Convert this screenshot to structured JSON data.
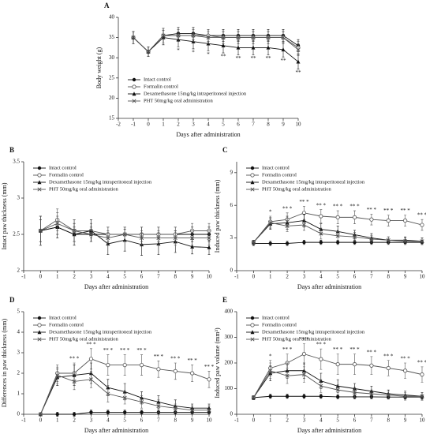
{
  "chart_data": [
    {
      "type": "line",
      "panel": "A",
      "ylabel": "Body weight (g)",
      "xlabel": "Days after administration",
      "x": [
        -1,
        0,
        1,
        2,
        3,
        4,
        5,
        6,
        7,
        8,
        9,
        10
      ],
      "xlim": [
        -2,
        10
      ],
      "xticks": [
        -2,
        -1,
        0,
        1,
        2,
        3,
        4,
        5,
        6,
        7,
        8,
        9,
        10
      ],
      "ylim": [
        15,
        40
      ],
      "yticks": [
        15,
        20,
        25,
        30,
        35,
        40
      ],
      "legend": "lower left",
      "annotation_position": "below",
      "series": [
        {
          "name": "Intact control",
          "color": "#111",
          "marker": "circle",
          "values": [
            35,
            31.5,
            35.5,
            36,
            36,
            35.5,
            35.5,
            35.5,
            35.5,
            35.5,
            35.5,
            33
          ],
          "errors": [
            1.5,
            1.2,
            1.8,
            1.5,
            1.5,
            1.5,
            1.5,
            1.5,
            1.5,
            1.5,
            1.5,
            1.5
          ]
        },
        {
          "name": "Formalin control",
          "color": "#555",
          "marker": "open-circle",
          "values": [
            35,
            31.5,
            35.5,
            35.5,
            35.5,
            35.5,
            35,
            35,
            35,
            35,
            35,
            32.5
          ],
          "errors": [
            1.5,
            1.2,
            1.8,
            1.5,
            1.5,
            1.5,
            1.5,
            1.5,
            1.5,
            1.5,
            1.5,
            1.5
          ]
        },
        {
          "name": "Dexamethasone 15mg/kg intraperitoneal injection",
          "color": "#111",
          "marker": "triangle",
          "values": [
            35,
            31.5,
            35,
            34.5,
            34,
            33.5,
            33,
            32.5,
            32.5,
            32.5,
            32,
            29
          ],
          "errors": [
            1.5,
            1.2,
            1.8,
            1.8,
            1.8,
            1.8,
            1.8,
            1.8,
            1.8,
            1.8,
            1.8,
            1.8
          ]
        },
        {
          "name": "PHT 50mg/kg oral administration",
          "color": "#555",
          "marker": "x",
          "values": [
            35,
            31.5,
            35.5,
            35.5,
            35.5,
            35,
            35,
            35,
            35,
            35,
            35,
            32
          ],
          "errors": [
            1.5,
            1.2,
            1.8,
            1.5,
            1.5,
            1.5,
            1.5,
            1.5,
            1.5,
            1.5,
            1.5,
            1.5
          ]
        }
      ],
      "annotations": [
        {
          "x": 2,
          "text": "*"
        },
        {
          "x": 3,
          "text": "*"
        },
        {
          "x": 4,
          "text": "*"
        },
        {
          "x": 5,
          "text": "**"
        },
        {
          "x": 6,
          "text": "**"
        },
        {
          "x": 7,
          "text": "**"
        },
        {
          "x": 8,
          "text": "**"
        },
        {
          "x": 9,
          "text": "**"
        },
        {
          "x": 10,
          "text": "**"
        }
      ]
    },
    {
      "type": "line",
      "panel": "B",
      "ylabel": "Intact paw thickness (mm)",
      "xlabel": "Days after administration",
      "x": [
        0,
        1,
        2,
        3,
        4,
        5,
        6,
        7,
        8,
        9,
        10
      ],
      "xlim": [
        -1,
        10
      ],
      "xticks": [
        -1,
        0,
        1,
        2,
        3,
        4,
        5,
        6,
        7,
        8,
        9,
        10
      ],
      "ylim": [
        2,
        3.5
      ],
      "yticks": [
        2,
        2.5,
        3,
        3.5
      ],
      "legend": "upper left",
      "series": [
        {
          "name": "Intact control",
          "color": "#111",
          "marker": "circle",
          "values": [
            2.55,
            2.6,
            2.5,
            2.5,
            2.5,
            2.5,
            2.5,
            2.5,
            2.5,
            2.5,
            2.5
          ],
          "errors": [
            0.15,
            0.1,
            0.1,
            0.1,
            0.1,
            0.1,
            0.1,
            0.1,
            0.1,
            0.1,
            0.1
          ]
        },
        {
          "name": "Formalin control",
          "color": "#555",
          "marker": "open-circle",
          "values": [
            2.55,
            2.7,
            2.55,
            2.55,
            2.5,
            2.5,
            2.5,
            2.5,
            2.5,
            2.55,
            2.55
          ],
          "errors": [
            0.2,
            0.15,
            0.15,
            0.1,
            0.1,
            0.1,
            0.1,
            0.1,
            0.1,
            0.1,
            0.1
          ]
        },
        {
          "name": "Dexamethasone 15mg/kg intraperitoneal injection",
          "color": "#111",
          "marker": "triangle",
          "values": [
            2.55,
            2.6,
            2.5,
            2.55,
            2.37,
            2.42,
            2.36,
            2.37,
            2.4,
            2.33,
            2.32
          ],
          "errors": [
            0.2,
            0.15,
            0.15,
            0.15,
            0.15,
            0.15,
            0.15,
            0.15,
            0.15,
            0.1,
            0.1
          ]
        },
        {
          "name": "PHT 50mg/kg oral administration",
          "color": "#555",
          "marker": "x",
          "values": [
            2.55,
            2.65,
            2.55,
            2.5,
            2.45,
            2.5,
            2.45,
            2.45,
            2.45,
            2.45,
            2.45
          ],
          "errors": [
            0.2,
            0.15,
            0.15,
            0.1,
            0.1,
            0.1,
            0.1,
            0.1,
            0.1,
            0.1,
            0.1
          ]
        }
      ],
      "annotations": []
    },
    {
      "type": "line",
      "panel": "C",
      "ylabel": "Induced paw thickness (mm)",
      "xlabel": "Days after administration",
      "x": [
        0,
        1,
        2,
        3,
        4,
        5,
        6,
        7,
        8,
        9,
        10
      ],
      "xlim": [
        -1,
        10
      ],
      "xticks": [
        -1,
        0,
        1,
        2,
        3,
        4,
        5,
        6,
        7,
        8,
        9,
        10
      ],
      "ylim": [
        0,
        10
      ],
      "yticks": [
        0,
        3,
        6,
        9
      ],
      "legend": "upper left",
      "annotation_position": "above",
      "series": [
        {
          "name": "Intact control",
          "color": "#111",
          "marker": "circle",
          "values": [
            2.5,
            2.5,
            2.5,
            2.6,
            2.6,
            2.6,
            2.6,
            2.6,
            2.6,
            2.6,
            2.6
          ],
          "errors": [
            0.2,
            0.2,
            0.2,
            0.2,
            0.2,
            0.2,
            0.2,
            0.2,
            0.2,
            0.2,
            0.2
          ]
        },
        {
          "name": "Formalin control",
          "color": "#555",
          "marker": "open-circle",
          "values": [
            2.6,
            4.5,
            4.7,
            5.3,
            5.0,
            4.9,
            4.9,
            4.7,
            4.6,
            4.6,
            4.2
          ],
          "errors": [
            0.2,
            0.5,
            0.6,
            0.6,
            0.6,
            0.6,
            0.6,
            0.5,
            0.5,
            0.5,
            0.5
          ]
        },
        {
          "name": "Dexamethasone 15mg/kg intraperitoneal injection",
          "color": "#111",
          "marker": "triangle",
          "values": [
            2.6,
            4.3,
            4.4,
            4.6,
            3.8,
            3.6,
            3.3,
            3.0,
            2.8,
            2.8,
            2.7
          ],
          "errors": [
            0.2,
            0.5,
            0.6,
            0.6,
            0.5,
            0.5,
            0.4,
            0.4,
            0.3,
            0.3,
            0.3
          ]
        },
        {
          "name": "PHT 50mg/kg oral administration",
          "color": "#555",
          "marker": "x",
          "values": [
            2.6,
            4.4,
            4.1,
            4.2,
            3.4,
            3.2,
            3.1,
            2.9,
            2.8,
            2.7,
            2.7
          ],
          "errors": [
            0.2,
            0.5,
            0.5,
            0.5,
            0.5,
            0.4,
            0.4,
            0.3,
            0.3,
            0.3,
            0.3
          ]
        }
      ],
      "annotations": [
        {
          "x": 1,
          "text": "*"
        },
        {
          "x": 2,
          "text": "** *"
        },
        {
          "x": 3,
          "text": "** *"
        },
        {
          "x": 4,
          "text": "** *"
        },
        {
          "x": 5,
          "text": "** *"
        },
        {
          "x": 6,
          "text": "** *"
        },
        {
          "x": 7,
          "text": "** *"
        },
        {
          "x": 8,
          "text": "** *"
        },
        {
          "x": 9,
          "text": "** *"
        },
        {
          "x": 10,
          "text": "** *"
        }
      ]
    },
    {
      "type": "line",
      "panel": "D",
      "ylabel": "Differences in paw thickness (mm)",
      "xlabel": "Days after administration",
      "x": [
        0,
        1,
        2,
        3,
        4,
        5,
        6,
        7,
        8,
        9,
        10
      ],
      "xlim": [
        -1,
        10
      ],
      "xticks": [
        -1,
        0,
        1,
        2,
        3,
        4,
        5,
        6,
        7,
        8,
        9,
        10
      ],
      "ylim": [
        0,
        5
      ],
      "yticks": [
        0,
        1,
        2,
        3,
        4,
        5
      ],
      "legend": "upper left",
      "annotation_position": "above",
      "series": [
        {
          "name": "Intact control",
          "color": "#111",
          "marker": "circle",
          "values": [
            0,
            0,
            0,
            0.1,
            0.1,
            0.1,
            0.1,
            0.1,
            0.1,
            0.1,
            0.1
          ],
          "errors": [
            0.05,
            0.1,
            0.1,
            0.1,
            0.1,
            0.1,
            0.1,
            0.1,
            0.1,
            0.1,
            0.1
          ]
        },
        {
          "name": "Formalin control",
          "color": "#555",
          "marker": "open-circle",
          "values": [
            0,
            2.0,
            2.0,
            2.7,
            2.4,
            2.4,
            2.4,
            2.2,
            2.1,
            2.0,
            1.7
          ],
          "errors": [
            0.05,
            0.4,
            0.5,
            0.5,
            0.5,
            0.5,
            0.5,
            0.4,
            0.4,
            0.4,
            0.4
          ]
        },
        {
          "name": "Dexamethasone 15mg/kg intraperitoneal injection",
          "color": "#111",
          "marker": "triangle",
          "values": [
            0,
            1.8,
            1.9,
            2.0,
            1.3,
            1.1,
            0.8,
            0.6,
            0.4,
            0.3,
            0.3
          ],
          "errors": [
            0.05,
            0.4,
            0.5,
            0.5,
            0.4,
            0.4,
            0.3,
            0.3,
            0.3,
            0.2,
            0.2
          ]
        },
        {
          "name": "PHT 50mg/kg oral administration",
          "color": "#555",
          "marker": "x",
          "values": [
            0,
            1.9,
            1.6,
            1.7,
            1.0,
            0.8,
            0.6,
            0.4,
            0.3,
            0.2,
            0.2
          ],
          "errors": [
            0.05,
            0.4,
            0.4,
            0.4,
            0.4,
            0.3,
            0.3,
            0.3,
            0.2,
            0.2,
            0.2
          ]
        }
      ],
      "annotations": [
        {
          "x": 2,
          "text": "** *"
        },
        {
          "x": 3,
          "text": "** *"
        },
        {
          "x": 4,
          "text": "** *"
        },
        {
          "x": 5,
          "text": "** *"
        },
        {
          "x": 6,
          "text": "** *"
        },
        {
          "x": 7,
          "text": "** *"
        },
        {
          "x": 8,
          "text": "** *"
        },
        {
          "x": 9,
          "text": "** *"
        },
        {
          "x": 10,
          "text": "** *"
        }
      ]
    },
    {
      "type": "line",
      "panel": "E",
      "ylabel": "Induced paw volume (mm³)",
      "xlabel": "Days after administration",
      "x": [
        0,
        1,
        2,
        3,
        4,
        5,
        6,
        7,
        8,
        9,
        10
      ],
      "xlim": [
        -1,
        10
      ],
      "xticks": [
        -1,
        0,
        1,
        2,
        3,
        4,
        5,
        6,
        7,
        8,
        9,
        10
      ],
      "ylim": [
        0,
        400
      ],
      "yticks": [
        0,
        100,
        200,
        300,
        400
      ],
      "legend": "upper left",
      "annotation_position": "above",
      "series": [
        {
          "name": "Intact control",
          "color": "#111",
          "marker": "circle",
          "values": [
            65,
            70,
            70,
            70,
            70,
            68,
            68,
            68,
            67,
            67,
            67
          ],
          "errors": [
            8,
            8,
            8,
            8,
            8,
            8,
            8,
            8,
            8,
            8,
            8
          ]
        },
        {
          "name": "Formalin control",
          "color": "#555",
          "marker": "open-circle",
          "values": [
            65,
            180,
            200,
            235,
            215,
            195,
            195,
            190,
            180,
            170,
            155
          ],
          "errors": [
            8,
            30,
            35,
            40,
            40,
            40,
            40,
            35,
            30,
            30,
            30
          ]
        },
        {
          "name": "Dexamethasone 15mg/kg intraperitoneal injection",
          "color": "#111",
          "marker": "triangle",
          "values": [
            65,
            160,
            170,
            170,
            130,
            110,
            100,
            90,
            80,
            75,
            70
          ],
          "errors": [
            8,
            30,
            30,
            30,
            30,
            25,
            20,
            20,
            15,
            15,
            15
          ]
        },
        {
          "name": "PHT 50mg/kg oral administration",
          "color": "#555",
          "marker": "x",
          "values": [
            65,
            170,
            150,
            155,
            110,
            95,
            85,
            80,
            75,
            70,
            70
          ],
          "errors": [
            8,
            30,
            30,
            30,
            25,
            20,
            20,
            15,
            15,
            15,
            15
          ]
        }
      ],
      "annotations": [
        {
          "x": 1,
          "text": "*"
        },
        {
          "x": 2,
          "text": "** *"
        },
        {
          "x": 3,
          "text": "** *"
        },
        {
          "x": 4,
          "text": "** *"
        },
        {
          "x": 5,
          "text": "** *"
        },
        {
          "x": 6,
          "text": "** *"
        },
        {
          "x": 7,
          "text": "** *"
        },
        {
          "x": 8,
          "text": "** *"
        },
        {
          "x": 9,
          "text": "** *"
        },
        {
          "x": 10,
          "text": "** *"
        }
      ]
    }
  ]
}
